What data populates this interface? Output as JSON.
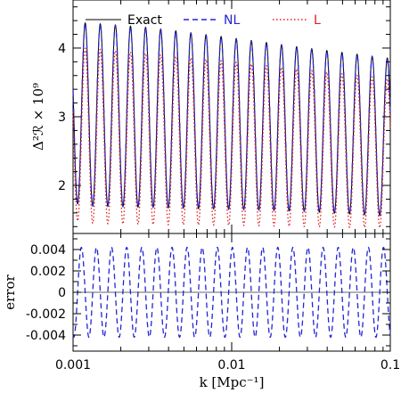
{
  "chart_data": [
    {
      "type": "line",
      "panel": "top",
      "ylabel": "Δ²ℛ × 10⁹",
      "xscale": "log",
      "xlim": [
        0.001,
        0.1
      ],
      "ylim": [
        1.3,
        4.7
      ],
      "yticks": [
        2,
        3,
        4
      ],
      "ytick_labels": [
        "2",
        "3",
        "4"
      ],
      "grid": false,
      "legend": {
        "placement": "top",
        "entries": [
          {
            "name": "Exact",
            "color": "#000000",
            "style": "solid"
          },
          {
            "name": "NL",
            "color": "#2424d6",
            "style": "dashed"
          },
          {
            "name": "L",
            "color": "#e02020",
            "style": "dotted"
          }
        ]
      },
      "series": [
        {
          "name": "Exact",
          "color": "#000000",
          "style": "solid",
          "oscillation": {
            "cycles_per_decade": 10.5,
            "phase_at_left": 0.2
          },
          "envelope": {
            "k": [
              0.001,
              0.0012,
              0.003,
              0.01,
              0.03,
              0.1
            ],
            "max": [
              4.25,
              4.37,
              4.3,
              4.15,
              4.0,
              3.85
            ],
            "min": [
              1.75,
              1.7,
              1.68,
              1.65,
              1.62,
              1.55
            ]
          }
        },
        {
          "name": "NL",
          "color": "#2424d6",
          "style": "dashed",
          "oscillation": {
            "cycles_per_decade": 10.5,
            "phase_at_left": 0.2
          },
          "envelope": {
            "k": [
              0.001,
              0.0012,
              0.003,
              0.01,
              0.03,
              0.1
            ],
            "max": [
              4.24,
              4.36,
              4.29,
              4.14,
              3.99,
              3.84
            ],
            "min": [
              1.76,
              1.71,
              1.69,
              1.66,
              1.63,
              1.56
            ]
          }
        },
        {
          "name": "L",
          "color": "#e02020",
          "style": "dotted",
          "oscillation": {
            "cycles_per_decade": 10.5,
            "phase_at_left": 0.2
          },
          "envelope": {
            "k": [
              0.001,
              0.0012,
              0.003,
              0.01,
              0.03,
              0.1
            ],
            "max": [
              3.9,
              4.0,
              3.92,
              3.8,
              3.68,
              3.55
            ],
            "min": [
              1.5,
              1.45,
              1.43,
              1.42,
              1.4,
              1.38
            ]
          }
        }
      ]
    },
    {
      "type": "line",
      "panel": "bottom",
      "xlabel": "k  [Mpc⁻¹]",
      "ylabel": "error",
      "xscale": "log",
      "xlim": [
        0.001,
        0.1
      ],
      "xticks": [
        0.001,
        0.01,
        0.1
      ],
      "xtick_labels": [
        "0.001",
        "0.01",
        "0.1"
      ],
      "ylim": [
        -0.0055,
        0.0055
      ],
      "yticks": [
        -0.004,
        -0.002,
        0,
        0.002,
        0.004
      ],
      "ytick_labels": [
        "-0.004",
        "-0.002",
        "0",
        "0.002",
        "0.004"
      ],
      "reference_line": {
        "y": 0,
        "color": "#666666"
      },
      "series": [
        {
          "name": "NL",
          "color": "#2424d6",
          "style": "dashed",
          "amplitude": 0.0042,
          "oscillation": {
            "cycles_per_decade": 10.5,
            "phase_at_left": 0.45
          }
        }
      ]
    }
  ]
}
